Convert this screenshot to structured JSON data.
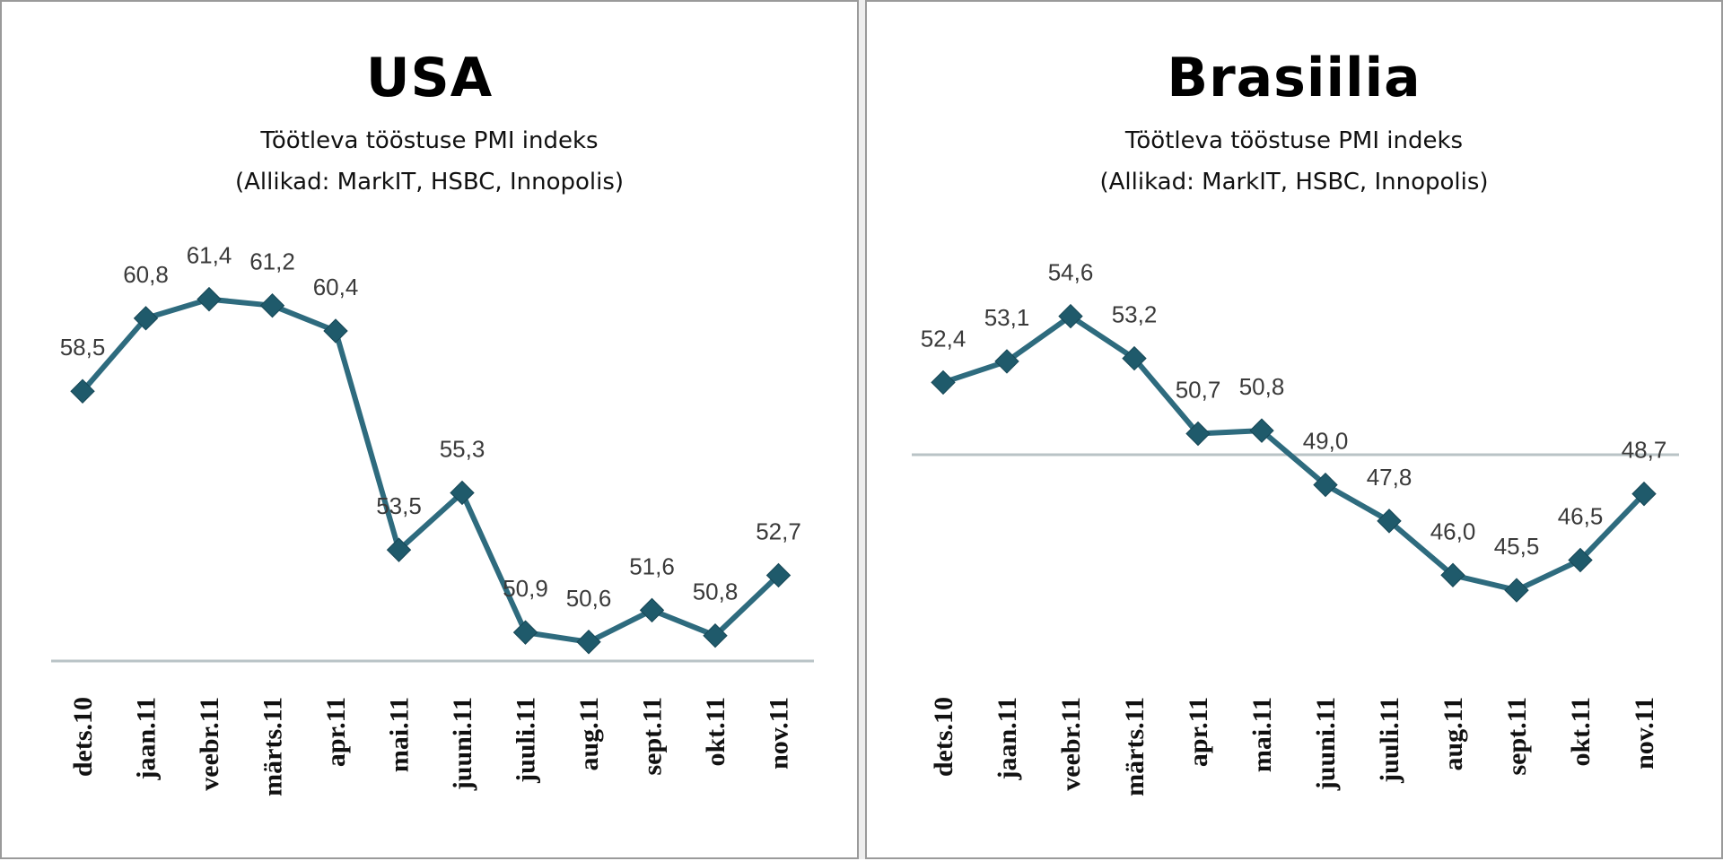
{
  "chart_data": [
    {
      "type": "line",
      "title": "USA",
      "subtitle": [
        "Töötleva tööstuse PMI indeks",
        "(Allikad: MarkIT, HSBC, Innopolis)"
      ],
      "categories": [
        "dets.10",
        "jaan.11",
        "veebr.11",
        "märts.11",
        "apr.11",
        "mai.11",
        "juuni.11",
        "juuli.11",
        "aug.11",
        "sept.11",
        "okt.11",
        "nov.11"
      ],
      "values": [
        58.5,
        60.8,
        61.4,
        61.2,
        60.4,
        53.5,
        55.3,
        50.9,
        50.6,
        51.6,
        50.8,
        52.7
      ],
      "data_labels": [
        "58,5",
        "60,8",
        "61,4",
        "61,2",
        "60,4",
        "53,5",
        "55,3",
        "50,9",
        "50,6",
        "51,6",
        "50,8",
        "52,7"
      ],
      "ylim": [
        50,
        63
      ],
      "reference_line": 50,
      "grid": false,
      "color": "#2e6b7e"
    },
    {
      "type": "line",
      "title": "Brasiilia",
      "subtitle": [
        "Töötleva tööstuse PMI indeks",
        "(Allikad: MarkIT, HSBC, Innopolis)"
      ],
      "categories": [
        "dets.10",
        "jaan.11",
        "veebr.11",
        "märts.11",
        "apr.11",
        "mai.11",
        "juuni.11",
        "juuli.11",
        "aug.11",
        "sept.11",
        "okt.11",
        "nov.11"
      ],
      "values": [
        52.4,
        53.1,
        54.6,
        53.2,
        50.7,
        50.8,
        49.0,
        47.8,
        46.0,
        45.5,
        46.5,
        48.7
      ],
      "data_labels": [
        "52,4",
        "53,1",
        "54,6",
        "53,2",
        "50,7",
        "50,8",
        "49,0",
        "47,8",
        "46,0",
        "45,5",
        "46,5",
        "48,7"
      ],
      "ylim": [
        43,
        57
      ],
      "reference_line": 50,
      "grid": false,
      "color": "#2e6b7e"
    }
  ]
}
